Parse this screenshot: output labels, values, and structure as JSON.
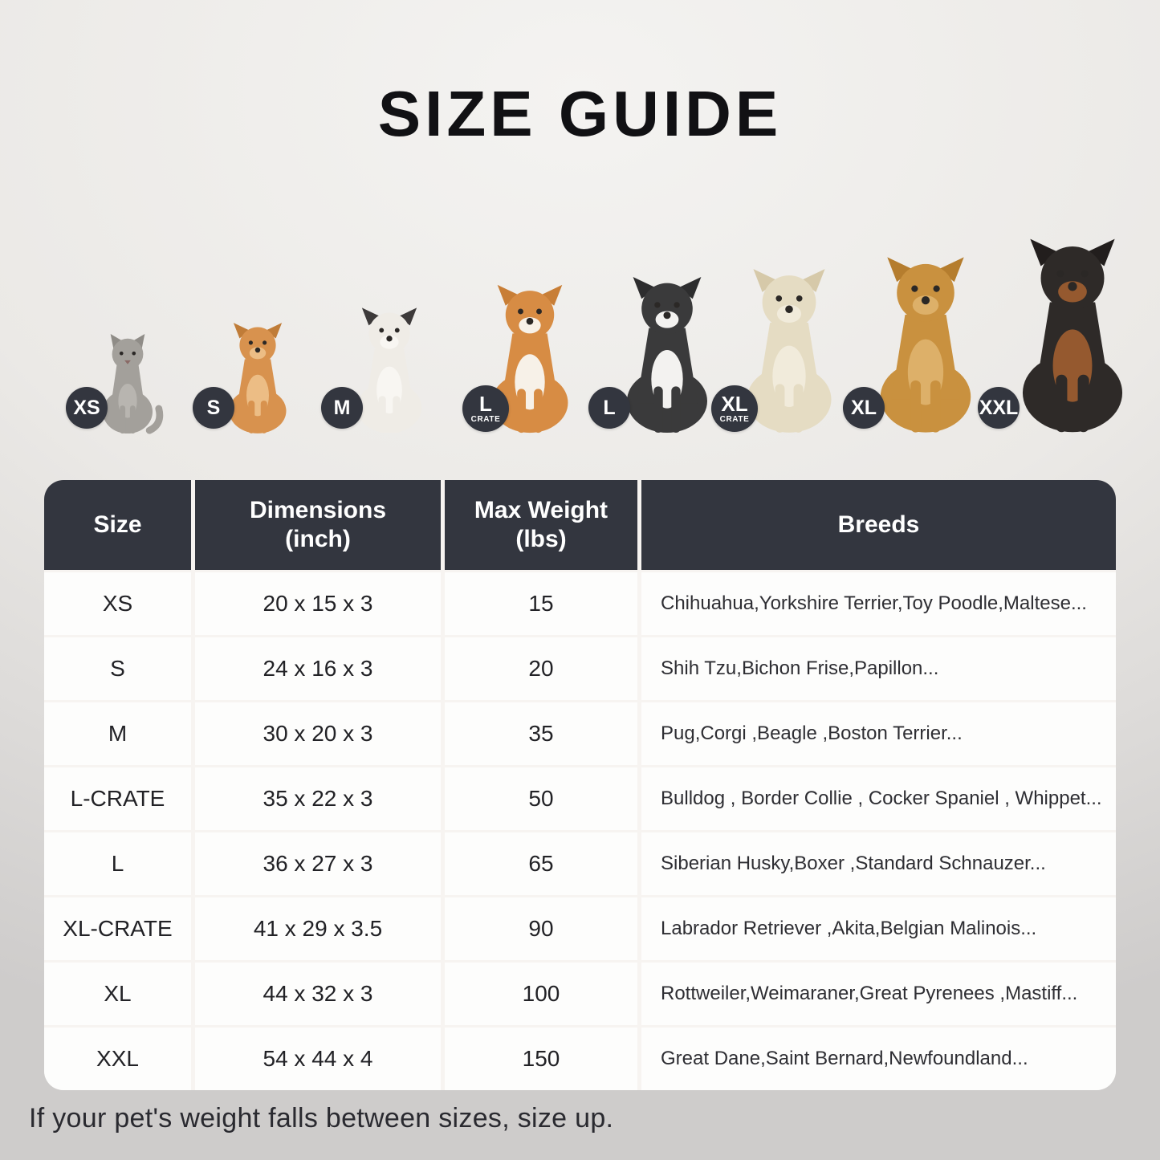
{
  "title": "SIZE GUIDE",
  "note": "If your pet's weight falls between sizes, size up.",
  "colors": {
    "header_bg": "#33363f",
    "badge_bg": "#33363f",
    "cell_bg": "#fdfdfc",
    "gap": "#f7f4f1",
    "page_top": "#f4f3f1",
    "page_bottom": "#cecccb",
    "title_text": "#111114",
    "header_text": "#ffffff",
    "cell_text": "#222226",
    "note_text": "#2a2a30"
  },
  "animals": [
    {
      "name": "cat",
      "type": "cat",
      "badge": "XS",
      "badge_sub": "",
      "colors": {
        "body": "#a3a09b",
        "chest": "#b8b5b0",
        "ear": "#8f8c87"
      }
    },
    {
      "name": "pomeranian",
      "type": "dog",
      "badge": "S",
      "badge_sub": "",
      "colors": {
        "body": "#d8924e",
        "chest": "#ecbd85",
        "ear": "#c07c38"
      }
    },
    {
      "name": "french-bulldog",
      "type": "dog",
      "badge": "M",
      "badge_sub": "",
      "colors": {
        "body": "#efece6",
        "chest": "#f8f6f2",
        "ear": "#3d3a3a"
      }
    },
    {
      "name": "shiba-inu",
      "type": "dog",
      "badge": "L",
      "badge_sub": "CRATE",
      "colors": {
        "body": "#d78c44",
        "chest": "#f7f1e8",
        "ear": "#c87e36"
      }
    },
    {
      "name": "border-collie",
      "type": "dog",
      "badge": "L",
      "badge_sub": "",
      "colors": {
        "body": "#3a3a3b",
        "chest": "#f3f2f0",
        "ear": "#2d2d2e"
      }
    },
    {
      "name": "labrador-retriever",
      "type": "dog",
      "badge": "XL",
      "badge_sub": "CRATE",
      "colors": {
        "body": "#e5dcc3",
        "chest": "#f1ebdb",
        "ear": "#d6c9a9"
      }
    },
    {
      "name": "golden-retriever",
      "type": "dog",
      "badge": "XL",
      "badge_sub": "",
      "colors": {
        "body": "#c9913f",
        "chest": "#ddb069",
        "ear": "#b57d2e"
      }
    },
    {
      "name": "doberman",
      "type": "dog",
      "badge": "XXL",
      "badge_sub": "",
      "colors": {
        "body": "#2e2a28",
        "chest": "#95592f",
        "ear": "#221e1d"
      }
    }
  ],
  "table": {
    "headers": [
      {
        "key": "size",
        "label": "Size",
        "sub": ""
      },
      {
        "key": "dimensions",
        "label": "Dimensions",
        "sub": "(inch)"
      },
      {
        "key": "max-weight",
        "label": "Max Weight",
        "sub": "(lbs)"
      },
      {
        "key": "breeds",
        "label": "Breeds",
        "sub": ""
      }
    ],
    "rows": [
      {
        "size": "XS",
        "dimensions": "20 x 15 x 3",
        "max_weight": "15",
        "breeds": "Chihuahua,Yorkshire Terrier,Toy Poodle,Maltese..."
      },
      {
        "size": "S",
        "dimensions": "24 x 16 x 3",
        "max_weight": "20",
        "breeds": "Shih Tzu,Bichon Frise,Papillon..."
      },
      {
        "size": "M",
        "dimensions": "30 x 20 x 3",
        "max_weight": "35",
        "breeds": "Pug,Corgi ,Beagle ,Boston Terrier..."
      },
      {
        "size": "L-CRATE",
        "dimensions": "35 x 22 x 3",
        "max_weight": "50",
        "breeds": "Bulldog , Border Collie , Cocker Spaniel , Whippet..."
      },
      {
        "size": "L",
        "dimensions": "36 x 27 x 3",
        "max_weight": "65",
        "breeds": "Siberian Husky,Boxer ,Standard Schnauzer..."
      },
      {
        "size": "XL-CRATE",
        "dimensions": "41 x 29 x 3.5",
        "max_weight": "90",
        "breeds": "Labrador Retriever ,Akita,Belgian Malinois..."
      },
      {
        "size": "XL",
        "dimensions": "44 x 32 x 3",
        "max_weight": "100",
        "breeds": "Rottweiler,Weimaraner,Great Pyrenees ,Mastiff..."
      },
      {
        "size": "XXL",
        "dimensions": "54 x 44 x 4",
        "max_weight": "150",
        "breeds": "Great Dane,Saint Bernard,Newfoundland..."
      }
    ]
  }
}
